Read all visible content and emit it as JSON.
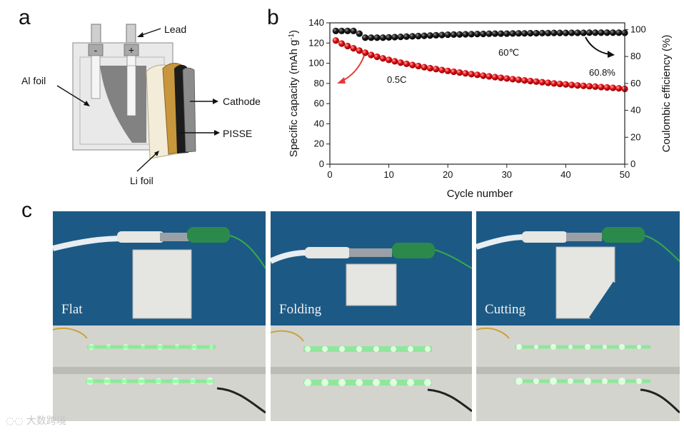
{
  "panel_a": {
    "label": "a",
    "callouts": {
      "lead": "Lead",
      "al_foil": "Al foil",
      "cathode": "Cathode",
      "pisse": "PISSE",
      "li_foil": "Li foil",
      "minus": "-",
      "plus": "+"
    },
    "colors": {
      "foil": "#e6e6e6",
      "cathode": "#808080",
      "li": "#c8963c",
      "separator": "#f2ecd8"
    }
  },
  "panel_b": {
    "label": "b"
  },
  "chart_data": {
    "type": "scatter",
    "title": "",
    "xlabel": "Cycle number",
    "ylabel": "Specific capacity (mAh g",
    "ylabel_sup": "-1",
    "ylabel_close": ")",
    "y2label": "Coulombic efficiency (%)",
    "xlim": [
      0,
      50
    ],
    "ylim": [
      0,
      140
    ],
    "y2lim": [
      0,
      105
    ],
    "xticks": [
      0,
      10,
      20,
      30,
      40,
      50
    ],
    "yticks": [
      0,
      20,
      40,
      60,
      80,
      100,
      120,
      140
    ],
    "y2ticks": [
      0,
      20,
      40,
      60,
      80,
      100
    ],
    "annotations": {
      "rate": "0.5C",
      "temperature": "60℃",
      "retention": "60.8%"
    },
    "series": [
      {
        "name": "Specific capacity",
        "axis": "left",
        "color": "#e8141a",
        "x": [
          1,
          2,
          3,
          4,
          5,
          6,
          7,
          8,
          9,
          10,
          11,
          12,
          13,
          14,
          15,
          16,
          17,
          18,
          19,
          20,
          21,
          22,
          23,
          24,
          25,
          26,
          27,
          28,
          29,
          30,
          31,
          32,
          33,
          34,
          35,
          36,
          37,
          38,
          39,
          40,
          41,
          42,
          43,
          44,
          45,
          46,
          47,
          48,
          49,
          50
        ],
        "values": [
          122.5,
          119.5,
          117.0,
          114.8,
          112.5,
          110.4,
          108.2,
          106.4,
          104.8,
          103.3,
          101.9,
          100.6,
          99.4,
          98.3,
          97.2,
          96.1,
          95.1,
          94.2,
          93.3,
          92.4,
          91.6,
          90.8,
          90.0,
          89.2,
          88.5,
          87.7,
          87.0,
          86.3,
          85.6,
          84.9,
          84.2,
          83.6,
          83.0,
          82.4,
          81.8,
          81.2,
          80.6,
          80.0,
          79.5,
          79.0,
          78.5,
          78.0,
          77.6,
          77.2,
          76.8,
          76.4,
          76.0,
          75.6,
          75.1,
          74.6
        ]
      },
      {
        "name": "Coulombic efficiency",
        "axis": "right",
        "color": "#151515",
        "x": [
          1,
          2,
          3,
          4,
          5,
          6,
          7,
          8,
          9,
          10,
          11,
          12,
          13,
          14,
          15,
          16,
          17,
          18,
          19,
          20,
          21,
          22,
          23,
          24,
          25,
          26,
          27,
          28,
          29,
          30,
          31,
          32,
          33,
          34,
          35,
          36,
          37,
          38,
          39,
          40,
          41,
          42,
          43,
          44,
          45,
          46,
          47,
          48,
          49,
          50
        ],
        "values": [
          99.0,
          99.0,
          99.0,
          99.0,
          97.0,
          94.0,
          94.0,
          94.0,
          94.0,
          94.2,
          94.4,
          94.6,
          94.8,
          95.0,
          95.2,
          95.4,
          95.6,
          95.8,
          96.0,
          96.2,
          96.3,
          96.4,
          96.5,
          96.6,
          96.7,
          96.8,
          96.9,
          97.0,
          97.0,
          97.0,
          97.1,
          97.2,
          97.2,
          97.3,
          97.3,
          97.4,
          97.4,
          97.5,
          97.5,
          97.5,
          97.6,
          97.6,
          97.6,
          97.7,
          97.7,
          97.7,
          97.7,
          97.7,
          97.7,
          97.6
        ]
      }
    ]
  },
  "panel_c": {
    "label": "c",
    "captions": [
      "Flat",
      "Folding",
      "Cutting"
    ]
  },
  "watermark": "大数跨境"
}
